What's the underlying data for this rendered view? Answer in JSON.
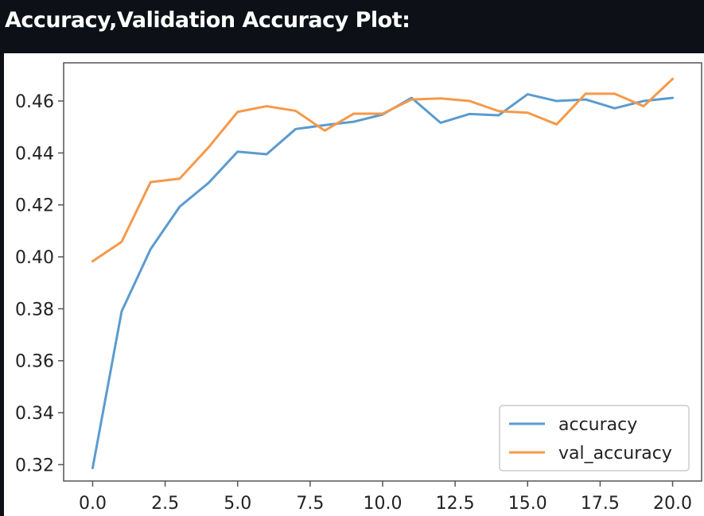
{
  "header": {
    "title": "Accuracy,Validation Accuracy Plot:"
  },
  "chart_data": {
    "type": "line",
    "title": "",
    "xlabel": "",
    "ylabel": "",
    "xlim": [
      -1.0,
      21.0
    ],
    "ylim": [
      0.3137,
      0.4747
    ],
    "xticks": [
      "0.0",
      "2.5",
      "5.0",
      "7.5",
      "10.0",
      "12.5",
      "15.0",
      "17.5",
      "20.0"
    ],
    "xtick_values": [
      0.0,
      2.5,
      5.0,
      7.5,
      10.0,
      12.5,
      15.0,
      17.5,
      20.0
    ],
    "yticks": [
      "0.32",
      "0.34",
      "0.36",
      "0.38",
      "0.40",
      "0.42",
      "0.44",
      "0.46"
    ],
    "ytick_values": [
      0.32,
      0.34,
      0.36,
      0.38,
      0.4,
      0.42,
      0.44,
      0.46
    ],
    "grid": false,
    "legend_position": "lower right",
    "x": [
      0,
      1,
      2,
      3,
      4,
      5,
      6,
      7,
      8,
      9,
      10,
      11,
      12,
      13,
      14,
      15,
      16,
      17,
      18,
      19,
      20
    ],
    "series": [
      {
        "name": "accuracy",
        "color": "#5b9bd0",
        "values": [
          0.3187,
          0.379,
          0.403,
          0.4193,
          0.4285,
          0.4405,
          0.4395,
          0.4492,
          0.4507,
          0.452,
          0.4548,
          0.4612,
          0.4516,
          0.455,
          0.4545,
          0.4626,
          0.46,
          0.4606,
          0.4572,
          0.46,
          0.4612
        ]
      },
      {
        "name": "val_accuracy",
        "color": "#f5994a",
        "values": [
          0.3983,
          0.4058,
          0.4288,
          0.4301,
          0.4422,
          0.4558,
          0.458,
          0.4562,
          0.4486,
          0.4551,
          0.4551,
          0.4606,
          0.461,
          0.46,
          0.4561,
          0.4555,
          0.451,
          0.4628,
          0.4628,
          0.458,
          0.4685
        ]
      }
    ]
  }
}
